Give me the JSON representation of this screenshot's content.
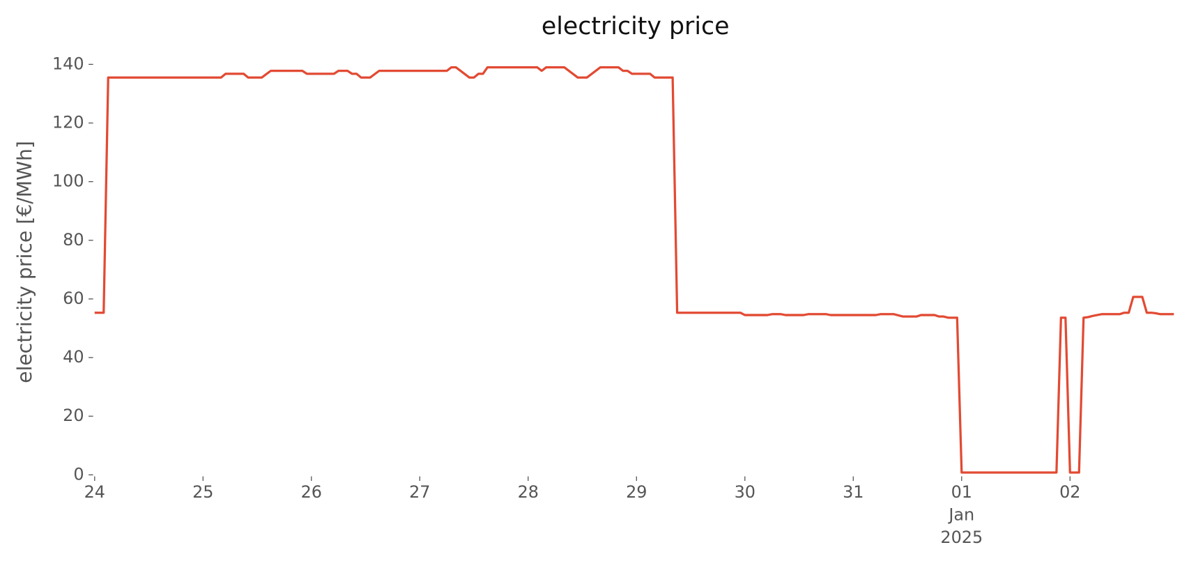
{
  "chart_data": {
    "type": "line",
    "title": "electricity price",
    "y_label": "electricity price [€/MWh]",
    "x": [
      0,
      2,
      3,
      28,
      29,
      33,
      34,
      37,
      39,
      46,
      47,
      53,
      54,
      56,
      57,
      58,
      59,
      61,
      63,
      78,
      79,
      80,
      83,
      84,
      85,
      86,
      87,
      98,
      99,
      100,
      104,
      107,
      109,
      112,
      116,
      117,
      118,
      119,
      123,
      124,
      128,
      129,
      143,
      144,
      149,
      150,
      152,
      153,
      157,
      158,
      162,
      163,
      173,
      174,
      177,
      179,
      182,
      183,
      186,
      187,
      188,
      189,
      191,
      192,
      213,
      214,
      215,
      216,
      218,
      219,
      220,
      221,
      222,
      223,
      227,
      228,
      229,
      230,
      232,
      233,
      234,
      235,
      236,
      239
    ],
    "series": [
      {
        "color": "#e24a33",
        "values": [
          55.3,
          55.3,
          135.5,
          135.5,
          136.8,
          136.8,
          135.5,
          135.5,
          137.8,
          137.8,
          136.8,
          136.8,
          137.8,
          137.8,
          136.8,
          136.8,
          135.5,
          135.5,
          137.8,
          137.8,
          139,
          139,
          135.5,
          135.5,
          136.8,
          136.8,
          139,
          139,
          137.8,
          139,
          139,
          135.5,
          135.5,
          139,
          139,
          137.8,
          137.8,
          136.8,
          136.8,
          135.5,
          135.5,
          55.3,
          55.3,
          54.5,
          54.5,
          54.8,
          54.8,
          54.5,
          54.5,
          54.8,
          54.8,
          54.5,
          54.5,
          54.8,
          54.8,
          54.0,
          54.0,
          54.5,
          54.5,
          54.0,
          54.0,
          53.6,
          53.6,
          0.8,
          0.8,
          53.6,
          53.6,
          0.8,
          0.8,
          53.6,
          53.8,
          54.2,
          54.5,
          54.8,
          54.8,
          55.3,
          55.3,
          60.7,
          60.7,
          55.3,
          55.3,
          55.1,
          54.8,
          54.8
        ]
      }
    ],
    "xlim": [
      0,
      239
    ],
    "xticks": [
      {
        "value": 0,
        "label": "24"
      },
      {
        "value": 24,
        "label": "25"
      },
      {
        "value": 48,
        "label": "26"
      },
      {
        "value": 72,
        "label": "27"
      },
      {
        "value": 96,
        "label": "28"
      },
      {
        "value": 120,
        "label": "29"
      },
      {
        "value": 144,
        "label": "30"
      },
      {
        "value": 168,
        "label": "31"
      },
      {
        "value": 192,
        "label": "01\nJan\n2025"
      },
      {
        "value": 216,
        "label": "02"
      }
    ],
    "ylim": [
      0,
      140
    ],
    "yticks": [
      0,
      20,
      40,
      60,
      80,
      100,
      120,
      140
    ],
    "grid": false
  }
}
